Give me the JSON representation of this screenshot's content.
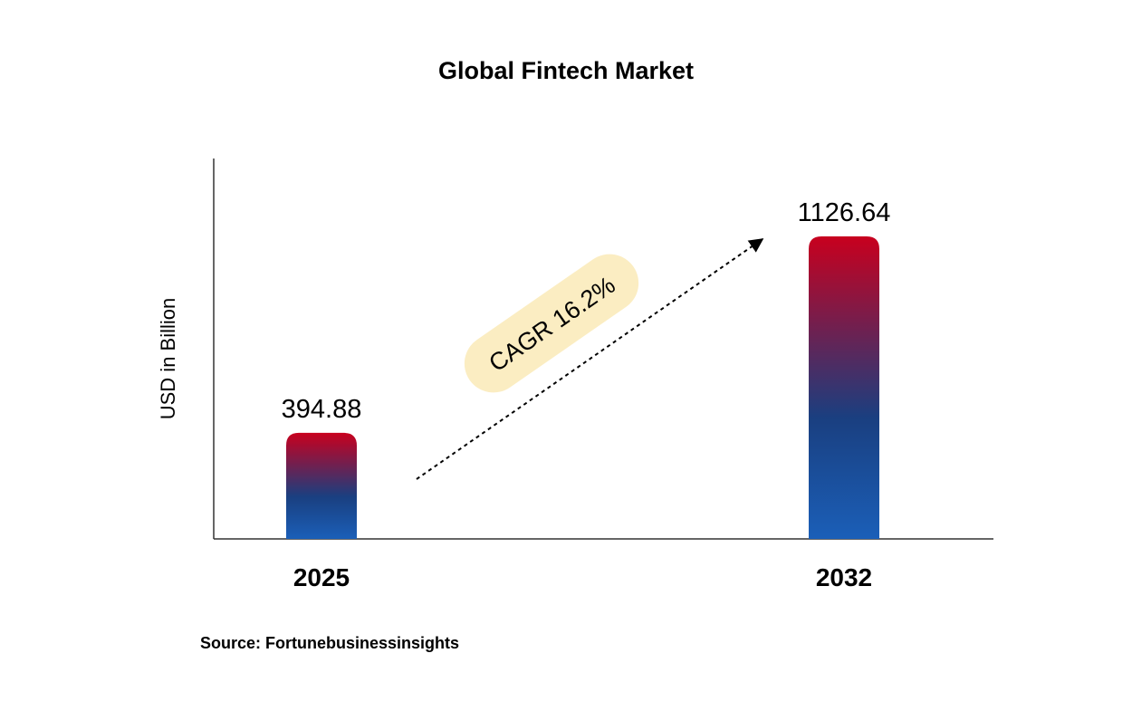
{
  "chart_data": {
    "type": "bar",
    "title": "Global Fintech Market",
    "ylabel": "USD in Billion",
    "xlabel": "",
    "categories": [
      "2025",
      "2032"
    ],
    "values": [
      394.88,
      1126.64
    ],
    "value_labels": [
      "394.88",
      "1126.64"
    ],
    "annotation": "CAGR 16.2%",
    "grid": false,
    "bar_gradient": [
      "#c8001e",
      "#1a3f80",
      "#1b5fb8"
    ]
  },
  "footer": {
    "source": "Source: Fortunebusinessinsights"
  }
}
